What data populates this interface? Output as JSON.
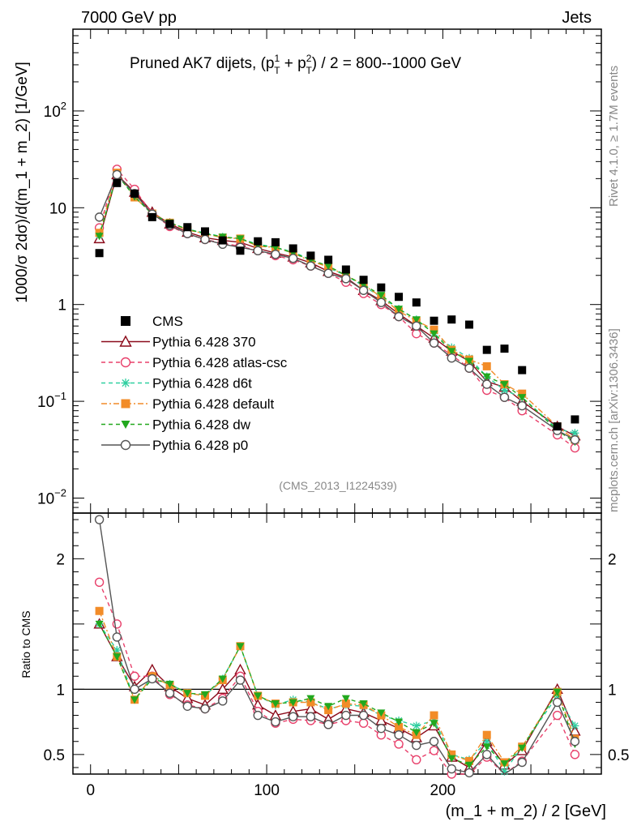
{
  "header": {
    "energy_label": "7000 GeV pp",
    "process_label": "Jets",
    "title_main": "Pruned AK7 dijets, (p",
    "title_sup1": "1",
    "title_sub1": "T",
    "title_plus": " + p",
    "title_sup2": "2",
    "title_sub2": "T",
    "title_range": ") / 2 = 800--1000 GeV",
    "analysis_id": "(CMS_2013_I1224539)",
    "side_rivet": "Rivet 4.1.0, ≥ 1.7M events",
    "side_mcplots": "mcplots.cern.ch [arXiv:1306.3436]"
  },
  "chart_data": {
    "type": "scatter",
    "title": "Pruned AK7 dijets, (pT1 + pT2) / 2 = 800--1000 GeV",
    "xlabel": "(m_1 + m_2) / 2 [GeV]",
    "ylabel": "1000/σ  2dσ)/d(m_1 + m_2) [1/GeV]",
    "ratio_ylabel": "Ratio to CMS",
    "yscale": "log",
    "xlim": [
      -10,
      290
    ],
    "ylim": [
      0.007,
      700
    ],
    "ratio_ylim": [
      0.35,
      2.35
    ],
    "x_ticks": [
      0,
      100,
      200
    ],
    "y_tick_labels": [
      {
        "value": 0.01,
        "base": "10",
        "exp": "−2"
      },
      {
        "value": 0.1,
        "base": "10",
        "exp": "−1"
      },
      {
        "value": 1,
        "base": "1",
        "exp": ""
      },
      {
        "value": 10,
        "base": "10",
        "exp": ""
      },
      {
        "value": 100,
        "base": "10",
        "exp": "2"
      }
    ],
    "ratio_tick_labels": [
      {
        "value": 0.5,
        "label": "0.5"
      },
      {
        "value": 1,
        "label": "1"
      },
      {
        "value": 2,
        "label": "2"
      }
    ],
    "legend_position": "center-left",
    "x": [
      5,
      15,
      25,
      35,
      45,
      55,
      65,
      75,
      85,
      95,
      105,
      115,
      125,
      135,
      145,
      155,
      165,
      175,
      185,
      195,
      205,
      215,
      225,
      235,
      245,
      265,
      275
    ],
    "data": {
      "name": "CMS",
      "values": [
        3.4,
        18,
        14,
        8,
        6.8,
        6.3,
        5.7,
        4.6,
        3.6,
        4.5,
        4.4,
        3.8,
        3.2,
        2.9,
        2.3,
        1.8,
        1.5,
        1.2,
        1.05,
        0.68,
        0.7,
        0.62,
        0.34,
        0.35,
        0.21,
        0.055,
        0.065
      ]
    },
    "series": [
      {
        "name": "Pythia 6.428 370",
        "color": "#8b0a1a",
        "style": "solid",
        "marker": "triangle-open",
        "values": [
          4.8,
          22,
          14.5,
          9,
          6.8,
          5.6,
          4.9,
          4.6,
          4.4,
          3.8,
          3.4,
          3.1,
          2.7,
          2.2,
          1.9,
          1.4,
          1.1,
          0.8,
          0.6,
          0.45,
          0.33,
          0.26,
          0.16,
          0.14,
          0.1,
          0.055,
          0.044
        ]
      },
      {
        "name": "Pythia 6.428 atlas-csc",
        "color": "#e8406b",
        "style": "dashed",
        "marker": "circle-open",
        "values": [
          6.2,
          25,
          15.5,
          8.7,
          6.4,
          5.4,
          4.7,
          4.3,
          4.0,
          3.6,
          3.2,
          2.9,
          2.5,
          2.1,
          1.7,
          1.3,
          1.0,
          0.75,
          0.5,
          0.4,
          0.3,
          0.22,
          0.13,
          0.11,
          0.08,
          0.045,
          0.033
        ]
      },
      {
        "name": "Pythia 6.428 d6t",
        "color": "#2fcfa0",
        "style": "dashed",
        "marker": "star",
        "values": [
          5.2,
          22.5,
          13,
          8.6,
          7.0,
          6.0,
          5.5,
          5.0,
          4.8,
          4.2,
          3.9,
          3.5,
          2.9,
          2.4,
          2.0,
          1.55,
          1.2,
          0.9,
          0.7,
          0.5,
          0.36,
          0.28,
          0.18,
          0.13,
          0.11,
          0.052,
          0.047
        ]
      },
      {
        "name": "Pythia 6.428 default",
        "color": "#f28c28",
        "style": "dashdot",
        "marker": "square",
        "values": [
          5.5,
          23,
          12.8,
          8.7,
          7.0,
          5.9,
          5.4,
          4.9,
          4.8,
          4.0,
          3.9,
          3.4,
          2.8,
          2.45,
          2.0,
          1.6,
          1.2,
          0.85,
          0.68,
          0.55,
          0.34,
          0.27,
          0.23,
          0.15,
          0.12,
          0.055,
          0.04
        ]
      },
      {
        "name": "Pythia 6.428 dw",
        "color": "#22a81e",
        "style": "dashed",
        "marker": "triangle-down",
        "values": [
          5.1,
          22,
          13,
          8.6,
          7.0,
          6.0,
          5.4,
          5.0,
          4.8,
          4.1,
          3.9,
          3.4,
          2.9,
          2.5,
          2.0,
          1.6,
          1.25,
          0.9,
          0.7,
          0.5,
          0.33,
          0.26,
          0.18,
          0.15,
          0.11,
          0.05,
          0.038
        ]
      },
      {
        "name": "Pythia 6.428 p0",
        "color": "#555555",
        "style": "solid",
        "marker": "circle-open",
        "values": [
          8,
          22,
          14,
          8.6,
          6.6,
          5.4,
          4.7,
          4.2,
          3.9,
          3.6,
          3.3,
          3.0,
          2.5,
          2.1,
          1.85,
          1.4,
          1.05,
          0.75,
          0.6,
          0.4,
          0.28,
          0.22,
          0.15,
          0.11,
          0.09,
          0.05,
          0.04
        ]
      }
    ],
    "ratio_series": [
      {
        "name": "Pythia 6.428 370",
        "values": [
          1.5,
          1.25,
          1.02,
          1.15,
          1.02,
          0.93,
          0.88,
          1.0,
          1.15,
          0.88,
          0.8,
          0.83,
          0.85,
          0.77,
          0.85,
          0.82,
          0.76,
          0.7,
          0.63,
          0.72,
          0.48,
          0.4,
          0.6,
          0.42,
          0.53,
          1.0,
          0.68
        ]
      },
      {
        "name": "Pythia 6.428 atlas-csc",
        "values": [
          1.82,
          1.5,
          1.1,
          1.1,
          0.96,
          0.88,
          0.85,
          0.93,
          1.1,
          0.83,
          0.74,
          0.77,
          0.76,
          0.73,
          0.76,
          0.74,
          0.65,
          0.58,
          0.46,
          0.53,
          0.35,
          0.32,
          0.48,
          0.31,
          0.45,
          0.8,
          0.5
        ]
      },
      {
        "name": "Pythia 6.428 d6t",
        "values": [
          1.5,
          1.3,
          0.92,
          1.1,
          1.04,
          0.97,
          0.95,
          1.08,
          1.33,
          0.95,
          0.88,
          0.92,
          0.9,
          0.85,
          0.88,
          0.87,
          0.8,
          0.76,
          0.72,
          0.76,
          0.5,
          0.46,
          0.6,
          0.37,
          0.56,
          0.95,
          0.72
        ]
      },
      {
        "name": "Pythia 6.428 default",
        "values": [
          1.6,
          1.25,
          0.92,
          1.1,
          1.03,
          0.97,
          0.95,
          1.07,
          1.33,
          0.95,
          0.89,
          0.9,
          0.9,
          0.84,
          0.89,
          0.88,
          0.8,
          0.71,
          0.65,
          0.8,
          0.5,
          0.45,
          0.65,
          0.44,
          0.56,
          0.98,
          0.62
        ]
      },
      {
        "name": "Pythia 6.428 dw",
        "values": [
          1.5,
          1.25,
          0.92,
          1.08,
          1.04,
          0.97,
          0.96,
          1.08,
          1.33,
          0.95,
          0.89,
          0.9,
          0.93,
          0.87,
          0.93,
          0.89,
          0.82,
          0.75,
          0.67,
          0.74,
          0.47,
          0.42,
          0.56,
          0.43,
          0.55,
          0.98,
          0.58
        ]
      },
      {
        "name": "Pythia 6.428 p0",
        "values": [
          2.3,
          1.4,
          1.0,
          1.08,
          0.97,
          0.87,
          0.85,
          0.91,
          1.07,
          0.8,
          0.75,
          0.79,
          0.79,
          0.73,
          0.8,
          0.8,
          0.7,
          0.65,
          0.57,
          0.6,
          0.39,
          0.36,
          0.5,
          0.32,
          0.44,
          0.9,
          0.6
        ]
      }
    ]
  }
}
